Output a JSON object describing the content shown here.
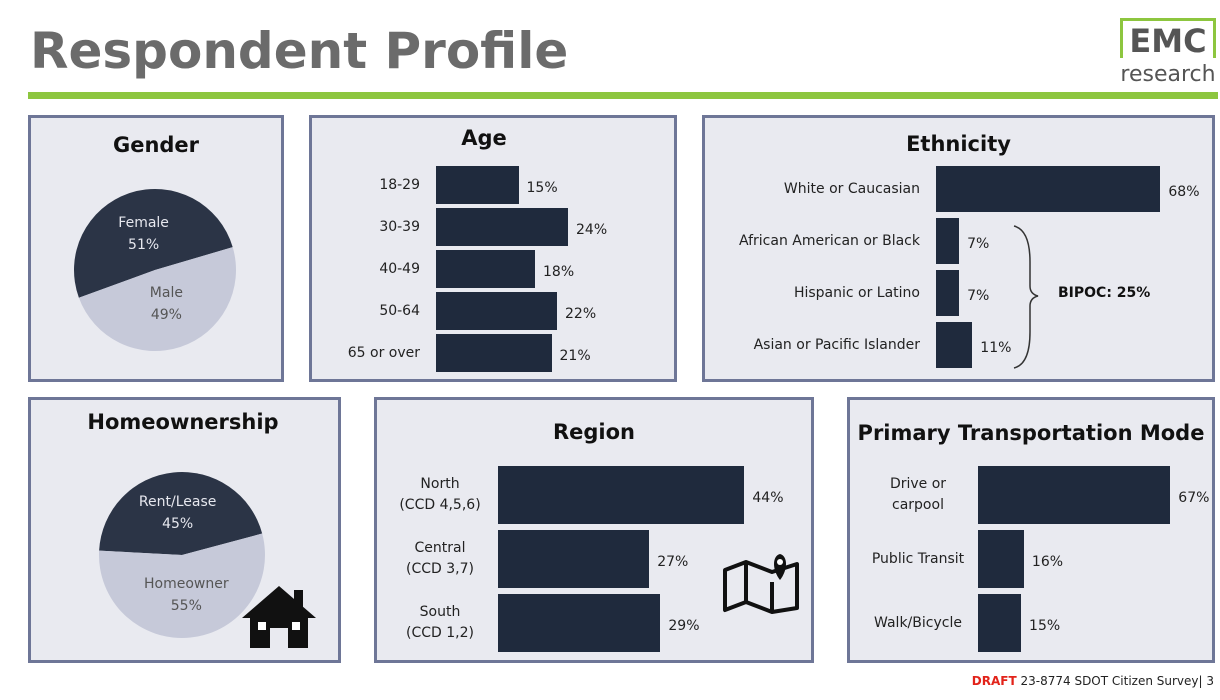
{
  "title": "Respondent Profile",
  "logo": {
    "top": "EMC",
    "bottom": "research"
  },
  "footer": {
    "draft": "DRAFT",
    "text": "23-8774 SDOT Citizen Survey| 3"
  },
  "chart_data": [
    {
      "type": "pie",
      "title": "Gender",
      "categories": [
        "Female",
        "Male"
      ],
      "values": [
        51,
        49
      ],
      "value_labels": [
        "51%",
        "49%"
      ],
      "colors": [
        "#2b3446",
        "#c6c9d9"
      ]
    },
    {
      "type": "bar",
      "title": "Age",
      "categories": [
        "18-29",
        "30-39",
        "40-49",
        "50-64",
        "65 or over"
      ],
      "values": [
        15,
        24,
        18,
        22,
        21
      ],
      "value_labels": [
        "15%",
        "24%",
        "18%",
        "22%",
        "21%"
      ],
      "color": "#1f2a3d"
    },
    {
      "type": "bar",
      "title": "Ethnicity",
      "categories": [
        "White or Caucasian",
        "African American or Black",
        "Hispanic or Latino",
        "Asian or Pacific Islander"
      ],
      "values": [
        68,
        7,
        7,
        11
      ],
      "value_labels": [
        "68%",
        "7%",
        "7%",
        "11%"
      ],
      "color": "#1f2a3d",
      "annotation": "BIPOC: 25%"
    },
    {
      "type": "pie",
      "title": "Homeownership",
      "categories": [
        "Rent/Lease",
        "Homeowner"
      ],
      "values": [
        45,
        55
      ],
      "value_labels": [
        "45%",
        "55%"
      ],
      "colors": [
        "#2b3446",
        "#c6c9d9"
      ]
    },
    {
      "type": "bar",
      "title": "Region",
      "categories": [
        "North\n(CCD 4,5,6)",
        "Central\n(CCD 3,7)",
        "South\n(CCD 1,2)"
      ],
      "values": [
        44,
        27,
        29
      ],
      "value_labels": [
        "44%",
        "27%",
        "29%"
      ],
      "color": "#1f2a3d"
    },
    {
      "type": "bar",
      "title": "Primary Transportation Mode",
      "categories": [
        "Drive or\ncarpool",
        "Public Transit",
        "Walk/Bicycle"
      ],
      "values": [
        67,
        16,
        15
      ],
      "value_labels": [
        "67%",
        "16%",
        "15%"
      ],
      "color": "#1f2a3d"
    }
  ]
}
